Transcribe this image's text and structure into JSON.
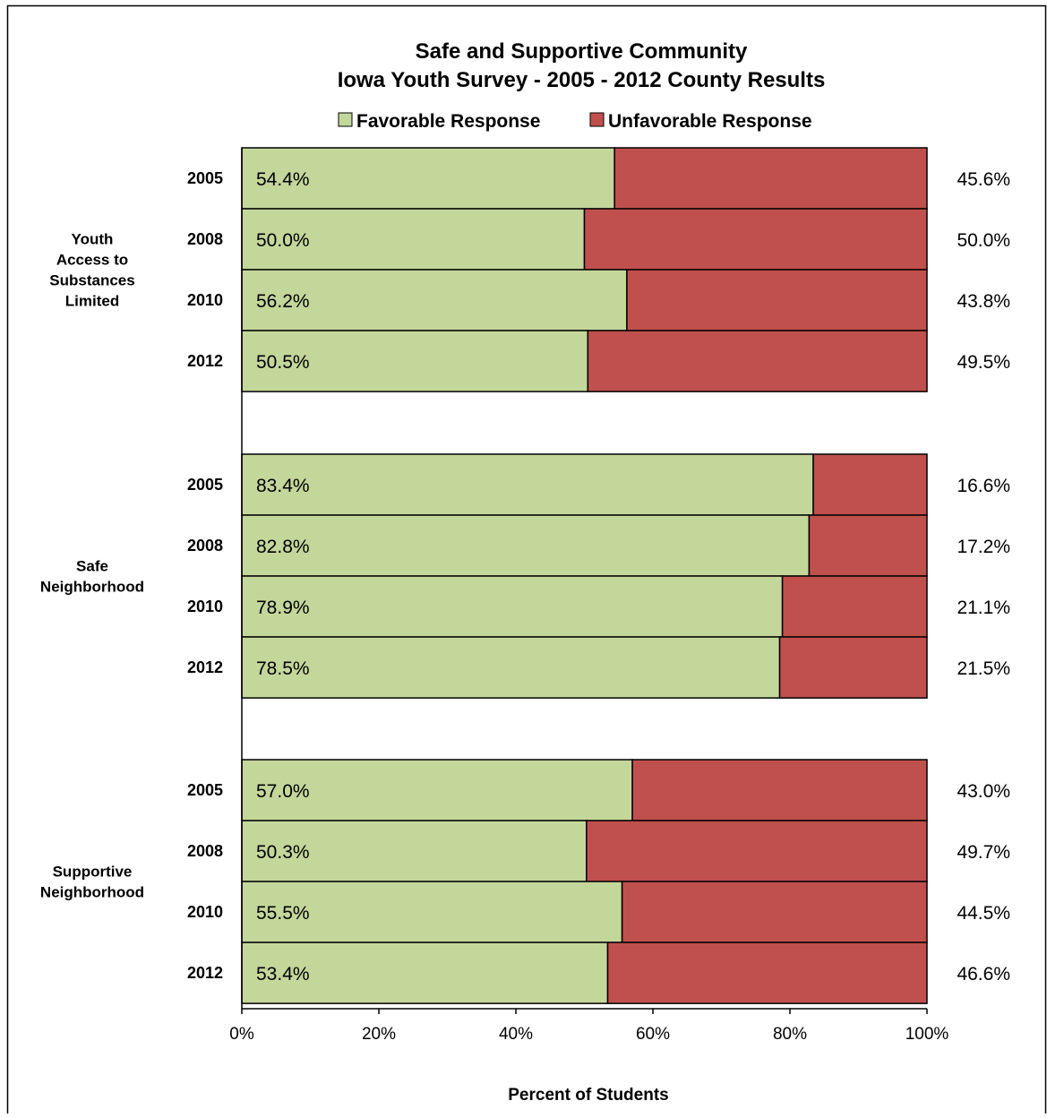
{
  "chart_data": {
    "type": "bar",
    "orientation": "horizontal",
    "stacked": true,
    "title": [
      "Safe and Supportive Community",
      "Iowa Youth Survey - 2005 - 2012 County Results"
    ],
    "xlabel": "Percent of Students",
    "xlim": [
      0,
      100
    ],
    "x_ticks": [
      "0%",
      "20%",
      "40%",
      "60%",
      "80%",
      "100%"
    ],
    "legend_position": "top",
    "grid": false,
    "colors": {
      "favorable": "#c4d79b",
      "unfavorable": "#c0504d",
      "border": "#000000"
    },
    "series": [
      {
        "name": "Favorable Response",
        "color": "#c4d79b"
      },
      {
        "name": "Unfavorable Response",
        "color": "#c0504d"
      }
    ],
    "groups": [
      {
        "label": [
          "Youth",
          "Access to",
          "Substances",
          "Limited"
        ],
        "rows": [
          {
            "year": "2005",
            "favorable": 54.4,
            "unfavorable": 45.6,
            "fav_label": "54.4%",
            "unfav_label": "45.6%"
          },
          {
            "year": "2008",
            "favorable": 50.0,
            "unfavorable": 50.0,
            "fav_label": "50.0%",
            "unfav_label": "50.0%"
          },
          {
            "year": "2010",
            "favorable": 56.2,
            "unfavorable": 43.8,
            "fav_label": "56.2%",
            "unfav_label": "43.8%"
          },
          {
            "year": "2012",
            "favorable": 50.5,
            "unfavorable": 49.5,
            "fav_label": "50.5%",
            "unfav_label": "49.5%"
          }
        ]
      },
      {
        "label": [
          "Safe",
          "Neighborhood"
        ],
        "rows": [
          {
            "year": "2005",
            "favorable": 83.4,
            "unfavorable": 16.6,
            "fav_label": "83.4%",
            "unfav_label": "16.6%"
          },
          {
            "year": "2008",
            "favorable": 82.8,
            "unfavorable": 17.2,
            "fav_label": "82.8%",
            "unfav_label": "17.2%"
          },
          {
            "year": "2010",
            "favorable": 78.9,
            "unfavorable": 21.1,
            "fav_label": "78.9%",
            "unfav_label": "21.1%"
          },
          {
            "year": "2012",
            "favorable": 78.5,
            "unfavorable": 21.5,
            "fav_label": "78.5%",
            "unfav_label": "21.5%"
          }
        ]
      },
      {
        "label": [
          "Supportive",
          "Neighborhood"
        ],
        "rows": [
          {
            "year": "2005",
            "favorable": 57.0,
            "unfavorable": 43.0,
            "fav_label": "57.0%",
            "unfav_label": "43.0%"
          },
          {
            "year": "2008",
            "favorable": 50.3,
            "unfavorable": 49.7,
            "fav_label": "50.3%",
            "unfav_label": "49.7%"
          },
          {
            "year": "2010",
            "favorable": 55.5,
            "unfavorable": 44.5,
            "fav_label": "55.5%",
            "unfav_label": "44.5%"
          },
          {
            "year": "2012",
            "favorable": 53.4,
            "unfavorable": 46.6,
            "fav_label": "53.4%",
            "unfav_label": "46.6%"
          }
        ]
      }
    ]
  }
}
